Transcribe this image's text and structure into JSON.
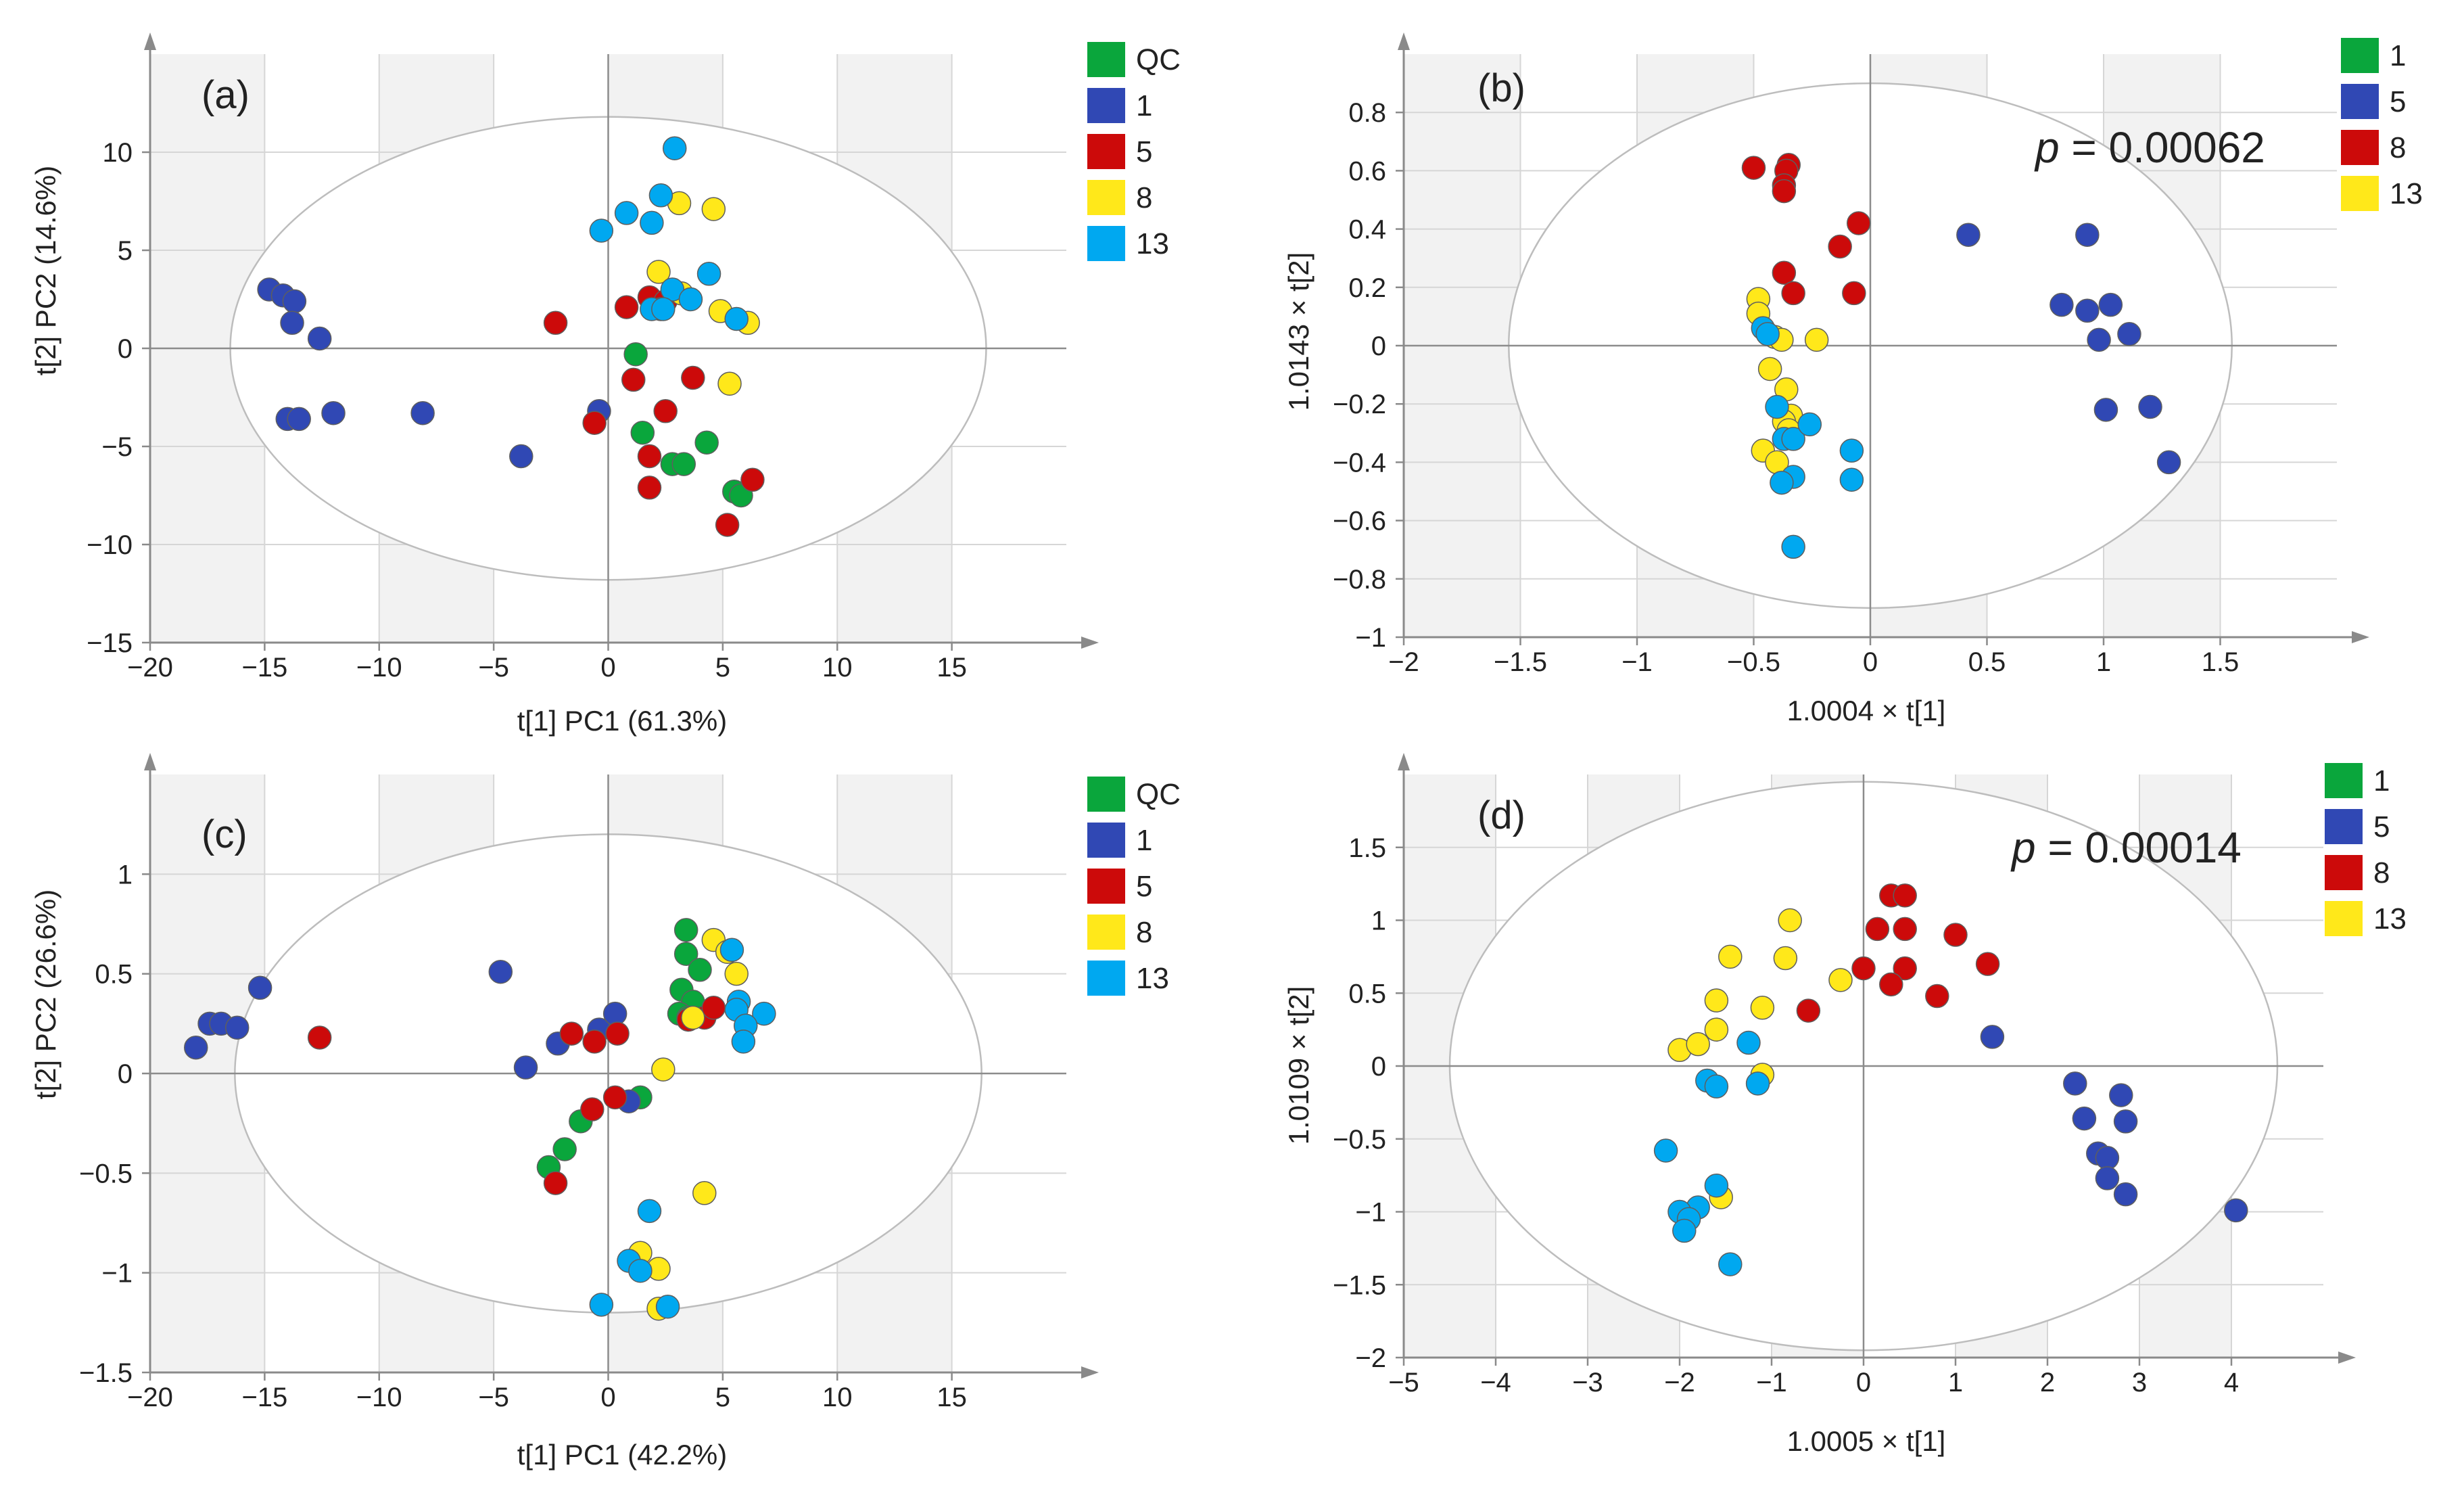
{
  "colors": {
    "QC": "#0aa63c",
    "1": "#3048b4",
    "5": "#cc0a0a",
    "8": "#ffe81a",
    "13": "#00a8f0"
  },
  "chart_data": [
    {
      "type": "scatter",
      "panel_label": "(a)",
      "xlabel": "t[1] PC1 (61.3%)",
      "ylabel": "t[2] PC2 (14.6%)",
      "xlim": [
        -20,
        20
      ],
      "ylim": [
        -15,
        15
      ],
      "xticks": [
        -20,
        -15,
        -10,
        -5,
        0,
        5,
        10,
        15
      ],
      "xtick_labels": [
        "−20",
        "−15",
        "−10",
        "−5",
        "0",
        "5",
        "10",
        "15"
      ],
      "yticks": [
        -15,
        -10,
        -5,
        0,
        5,
        10
      ],
      "ytick_labels": [
        "−15",
        "−10",
        "−5",
        "0",
        "5",
        "10"
      ],
      "ellipse": {
        "cx": 0,
        "cy": 0,
        "rx": 16.5,
        "ry": 11.8
      },
      "legend": [
        "QC",
        "1",
        "5",
        "8",
        "13"
      ],
      "series": [
        {
          "name": "QC",
          "points": [
            [
              1.2,
              -0.3
            ],
            [
              1.5,
              -4.3
            ],
            [
              4.3,
              -4.8
            ],
            [
              2.8,
              -5.9
            ],
            [
              3.3,
              -5.9
            ],
            [
              5.5,
              -7.3
            ],
            [
              5.8,
              -7.5
            ]
          ]
        },
        {
          "name": "1",
          "points": [
            [
              -14.8,
              3.0
            ],
            [
              -14.2,
              2.7
            ],
            [
              -13.7,
              2.4
            ],
            [
              -13.8,
              1.3
            ],
            [
              -12.6,
              0.5
            ],
            [
              -14.0,
              -3.6
            ],
            [
              -13.5,
              -3.6
            ],
            [
              -12.0,
              -3.3
            ],
            [
              -8.1,
              -3.3
            ],
            [
              -3.8,
              -5.5
            ],
            [
              -0.4,
              -3.2
            ]
          ]
        },
        {
          "name": "5",
          "points": [
            [
              -2.3,
              1.3
            ],
            [
              0.8,
              2.1
            ],
            [
              1.8,
              2.6
            ],
            [
              2.5,
              2.4
            ],
            [
              1.1,
              -1.6
            ],
            [
              3.7,
              -1.5
            ],
            [
              2.5,
              -3.2
            ],
            [
              -0.6,
              -3.8
            ],
            [
              1.8,
              -5.5
            ],
            [
              1.8,
              -7.1
            ],
            [
              6.3,
              -6.7
            ],
            [
              5.2,
              -9.0
            ]
          ]
        },
        {
          "name": "8",
          "points": [
            [
              3.1,
              7.4
            ],
            [
              4.6,
              7.1
            ],
            [
              2.2,
              3.9
            ],
            [
              3.2,
              2.8
            ],
            [
              2.3,
              2.0
            ],
            [
              4.9,
              1.9
            ],
            [
              6.1,
              1.3
            ],
            [
              5.3,
              -1.8
            ]
          ]
        },
        {
          "name": "13",
          "points": [
            [
              2.9,
              10.2
            ],
            [
              2.3,
              7.8
            ],
            [
              0.8,
              6.9
            ],
            [
              1.9,
              6.4
            ],
            [
              -0.3,
              6.0
            ],
            [
              4.4,
              3.8
            ],
            [
              2.8,
              3.0
            ],
            [
              3.6,
              2.5
            ],
            [
              1.9,
              2.0
            ],
            [
              2.4,
              2.0
            ],
            [
              5.6,
              1.5
            ]
          ]
        }
      ]
    },
    {
      "type": "scatter",
      "panel_label": "(b)",
      "annotation_p": "p",
      "annotation_value": " = 0.00062",
      "xlabel": "1.0004 × t[1]",
      "ylabel": "1.0143 × t[2]",
      "xlim": [
        -2,
        2
      ],
      "ylim": [
        -1,
        1
      ],
      "xticks": [
        -2,
        -1.5,
        -1,
        -0.5,
        0,
        0.5,
        1,
        1.5
      ],
      "xtick_labels": [
        "−2",
        "−1.5",
        "−1",
        "−0.5",
        "0",
        "0.5",
        "1",
        "1.5"
      ],
      "yticks": [
        -1,
        -0.8,
        -0.6,
        -0.4,
        -0.2,
        0,
        0.2,
        0.4,
        0.6,
        0.8
      ],
      "ytick_labels": [
        "−1",
        "−0.8",
        "−0.6",
        "−0.4",
        "−0.2",
        "0",
        "0.2",
        "0.4",
        "0.6",
        "0.8"
      ],
      "ellipse": {
        "cx": 0,
        "cy": 0,
        "rx": 1.55,
        "ry": 0.9
      },
      "legend": [
        "1",
        "5",
        "8",
        "13"
      ],
      "legend_keys": [
        "QC",
        "1",
        "5",
        "8"
      ],
      "series": [
        {
          "name": "1",
          "points": [
            [
              0.42,
              0.38
            ],
            [
              0.93,
              0.38
            ],
            [
              0.82,
              0.14
            ],
            [
              0.93,
              0.12
            ],
            [
              1.03,
              0.14
            ],
            [
              0.98,
              0.02
            ],
            [
              1.11,
              0.04
            ],
            [
              1.01,
              -0.22
            ],
            [
              1.2,
              -0.21
            ],
            [
              1.28,
              -0.4
            ]
          ]
        },
        {
          "name": "5",
          "points": [
            [
              -0.5,
              0.61
            ],
            [
              -0.35,
              0.62
            ],
            [
              -0.36,
              0.6
            ],
            [
              -0.37,
              0.55
            ],
            [
              -0.37,
              0.53
            ],
            [
              -0.05,
              0.42
            ],
            [
              -0.13,
              0.34
            ],
            [
              -0.37,
              0.25
            ],
            [
              -0.33,
              0.18
            ],
            [
              -0.07,
              0.18
            ]
          ]
        },
        {
          "name": "8",
          "points": [
            [
              -0.48,
              0.16
            ],
            [
              -0.48,
              0.11
            ],
            [
              -0.41,
              0.03
            ],
            [
              -0.38,
              0.02
            ],
            [
              -0.23,
              0.02
            ],
            [
              -0.43,
              -0.08
            ],
            [
              -0.36,
              -0.15
            ],
            [
              -0.34,
              -0.24
            ],
            [
              -0.37,
              -0.26
            ],
            [
              -0.35,
              -0.29
            ],
            [
              -0.46,
              -0.36
            ],
            [
              -0.4,
              -0.4
            ]
          ]
        },
        {
          "name": "13",
          "points": [
            [
              -0.46,
              0.06
            ],
            [
              -0.44,
              0.04
            ],
            [
              -0.4,
              -0.21
            ],
            [
              -0.37,
              -0.32
            ],
            [
              -0.33,
              -0.32
            ],
            [
              -0.26,
              -0.27
            ],
            [
              -0.08,
              -0.36
            ],
            [
              -0.08,
              -0.46
            ],
            [
              -0.33,
              -0.45
            ],
            [
              -0.38,
              -0.47
            ],
            [
              -0.33,
              -0.69
            ]
          ]
        }
      ]
    },
    {
      "type": "scatter",
      "panel_label": "(c)",
      "xlabel": "t[1] PC1 (42.2%)",
      "ylabel": "t[2] PC2 (26.6%)",
      "xlim": [
        -20,
        20
      ],
      "ylim": [
        -1.5,
        1.5
      ],
      "xticks": [
        -20,
        -15,
        -10,
        -5,
        0,
        5,
        10,
        15
      ],
      "xtick_labels": [
        "−20",
        "−15",
        "−10",
        "−5",
        "0",
        "5",
        "10",
        "15"
      ],
      "yticks": [
        -1.5,
        -1,
        -0.5,
        0,
        0.5,
        1
      ],
      "ytick_labels": [
        "−1.5",
        "−1",
        "−0.5",
        "0",
        "0.5",
        "1"
      ],
      "ellipse": {
        "cx": 0,
        "cy": 0,
        "rx": 16.3,
        "ry": 1.2
      },
      "legend": [
        "QC",
        "1",
        "5",
        "8",
        "13"
      ],
      "series": [
        {
          "name": "QC",
          "points": [
            [
              3.4,
              0.72
            ],
            [
              3.4,
              0.6
            ],
            [
              4.0,
              0.52
            ],
            [
              3.2,
              0.42
            ],
            [
              3.7,
              0.36
            ],
            [
              3.1,
              0.3
            ],
            [
              3.5,
              0.28
            ],
            [
              1.4,
              -0.12
            ],
            [
              -1.2,
              -0.24
            ],
            [
              -1.9,
              -0.38
            ],
            [
              -2.6,
              -0.47
            ]
          ]
        },
        {
          "name": "1",
          "points": [
            [
              -18.0,
              0.13
            ],
            [
              -17.4,
              0.25
            ],
            [
              -16.9,
              0.25
            ],
            [
              -16.2,
              0.23
            ],
            [
              -15.2,
              0.43
            ],
            [
              -4.7,
              0.51
            ],
            [
              -2.2,
              0.15
            ],
            [
              -3.6,
              0.03
            ],
            [
              -0.4,
              0.22
            ],
            [
              0.3,
              0.3
            ],
            [
              0.9,
              -0.14
            ]
          ]
        },
        {
          "name": "5",
          "points": [
            [
              -12.6,
              0.18
            ],
            [
              -1.6,
              0.2
            ],
            [
              -0.6,
              0.16
            ],
            [
              0.4,
              0.2
            ],
            [
              -0.7,
              -0.18
            ],
            [
              0.3,
              -0.12
            ],
            [
              -2.3,
              -0.55
            ],
            [
              3.5,
              0.27
            ],
            [
              4.2,
              0.28
            ],
            [
              4.6,
              0.33
            ]
          ]
        },
        {
          "name": "8",
          "points": [
            [
              4.6,
              0.67
            ],
            [
              5.2,
              0.61
            ],
            [
              5.6,
              0.5
            ],
            [
              3.7,
              0.28
            ],
            [
              2.4,
              0.02
            ],
            [
              4.2,
              -0.6
            ],
            [
              1.4,
              -0.9
            ],
            [
              2.2,
              -0.98
            ],
            [
              2.2,
              -1.18
            ]
          ]
        },
        {
          "name": "13",
          "points": [
            [
              5.4,
              0.62
            ],
            [
              5.7,
              0.36
            ],
            [
              5.6,
              0.32
            ],
            [
              6.8,
              0.3
            ],
            [
              6.0,
              0.24
            ],
            [
              5.9,
              0.16
            ],
            [
              1.8,
              -0.69
            ],
            [
              0.9,
              -0.94
            ],
            [
              1.4,
              -0.99
            ],
            [
              -0.3,
              -1.16
            ],
            [
              2.6,
              -1.17
            ]
          ]
        }
      ]
    },
    {
      "type": "scatter",
      "panel_label": "(d)",
      "annotation_p": "p",
      "annotation_value": " = 0.00014",
      "xlabel": "1.0005 × t[1]",
      "ylabel": "1.0109 × t[2]",
      "xlim": [
        -5,
        5
      ],
      "ylim": [
        -2,
        2
      ],
      "xticks": [
        -5,
        -4,
        -3,
        -2,
        -1,
        0,
        1,
        2,
        3,
        4
      ],
      "xtick_labels": [
        "−5",
        "−4",
        "−3",
        "−2",
        "−1",
        "0",
        "1",
        "2",
        "3",
        "4"
      ],
      "yticks": [
        -2,
        -1.5,
        -1,
        -0.5,
        0,
        0.5,
        1,
        1.5
      ],
      "ytick_labels": [
        "−2",
        "−1.5",
        "−1",
        "−0.5",
        "0",
        "0.5",
        "1",
        "1.5"
      ],
      "ellipse": {
        "cx": 0,
        "cy": 0,
        "rx": 4.5,
        "ry": 1.95
      },
      "legend": [
        "1",
        "5",
        "8",
        "13"
      ],
      "legend_keys": [
        "QC",
        "1",
        "5",
        "8"
      ],
      "series": [
        {
          "name": "1",
          "points": [
            [
              1.4,
              0.2
            ],
            [
              2.3,
              -0.12
            ],
            [
              2.8,
              -0.2
            ],
            [
              2.4,
              -0.36
            ],
            [
              2.85,
              -0.38
            ],
            [
              2.55,
              -0.6
            ],
            [
              2.65,
              -0.63
            ],
            [
              2.65,
              -0.77
            ],
            [
              2.85,
              -0.88
            ],
            [
              4.05,
              -0.99
            ]
          ]
        },
        {
          "name": "5",
          "points": [
            [
              0.3,
              1.17
            ],
            [
              0.45,
              1.17
            ],
            [
              0.15,
              0.94
            ],
            [
              0.45,
              0.94
            ],
            [
              1.0,
              0.9
            ],
            [
              1.35,
              0.7
            ],
            [
              0.0,
              0.67
            ],
            [
              0.45,
              0.67
            ],
            [
              0.3,
              0.56
            ],
            [
              0.8,
              0.48
            ],
            [
              -0.6,
              0.38
            ]
          ]
        },
        {
          "name": "8",
          "points": [
            [
              -0.8,
              1.0
            ],
            [
              -0.85,
              0.74
            ],
            [
              -1.45,
              0.75
            ],
            [
              -0.25,
              0.59
            ],
            [
              -1.6,
              0.45
            ],
            [
              -1.1,
              0.4
            ],
            [
              -1.6,
              0.25
            ],
            [
              -2.0,
              0.11
            ],
            [
              -1.8,
              0.15
            ],
            [
              -1.1,
              -0.06
            ],
            [
              -1.55,
              -0.9
            ]
          ]
        },
        {
          "name": "13",
          "points": [
            [
              -1.25,
              0.16
            ],
            [
              -1.7,
              -0.1
            ],
            [
              -1.6,
              -0.14
            ],
            [
              -1.15,
              -0.12
            ],
            [
              -2.15,
              -0.58
            ],
            [
              -1.6,
              -0.82
            ],
            [
              -1.8,
              -0.97
            ],
            [
              -2.0,
              -1.0
            ],
            [
              -1.9,
              -1.05
            ],
            [
              -1.95,
              -1.13
            ],
            [
              -1.45,
              -1.36
            ]
          ]
        }
      ]
    }
  ]
}
